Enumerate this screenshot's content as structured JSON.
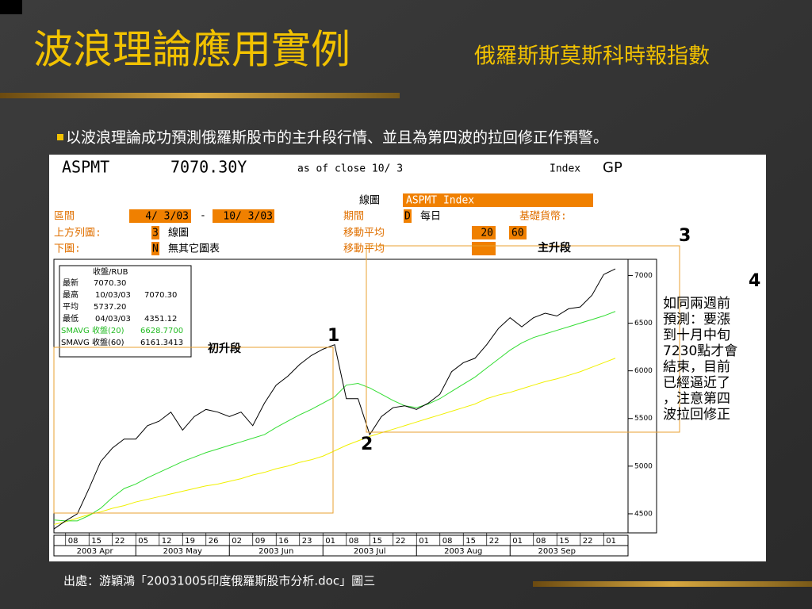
{
  "slide": {
    "title": "波浪理論應用實例",
    "subtitle": "俄羅斯斯莫斯科時報指數",
    "bullet": "以波浪理論成功預測俄羅斯股市的主升段行情、並且為第四波的拉回修正作預警。",
    "source": "出處：游穎鴻「20031005印度俄羅斯股市分析.doc」圖三"
  },
  "header": {
    "ticker": "ASPMT",
    "price": "7070.30Y",
    "asof": "as of close 10/ 3",
    "index": "Index",
    "gp": "GP",
    "chart_lbl": "線圖",
    "security": "ASPMT Index",
    "range_lbl": "區間",
    "from": "4/ 3/03",
    "dash": "-",
    "to": "10/ 3/03",
    "period_lbl": "期間",
    "period_code": "D",
    "period": "每日",
    "currency_lbl": "基礎貨幣:",
    "upper_lbl": "上方列圖:",
    "upper_code": "3",
    "upper": "線圖",
    "ma_lbl1": "移動平均",
    "ma1": "20",
    "ma2": "60",
    "lower_lbl": "下圖:",
    "lower_code": "N",
    "lower": "無其它圖表",
    "ma_lbl2": "移動平均"
  },
  "info": {
    "head": "收盤/RUB",
    "rows": [
      [
        "最新",
        "",
        "7070.30"
      ],
      [
        "最高",
        "10/03/03",
        "7070.30"
      ],
      [
        "平均",
        "",
        "5737.20"
      ],
      [
        "最低",
        "04/03/03",
        "4351.12"
      ]
    ]
  },
  "annotations": {
    "main": "主升段",
    "w1": "1",
    "w2": "2",
    "w3": "3",
    "w4": "4",
    "initial": "初升段",
    "note": [
      "如同兩週前",
      "預測：要漲",
      "到十月中旬",
      "7230點才會",
      "結束，目前",
      "已經逼近了",
      "，注意第四",
      "波拉回修正"
    ]
  },
  "chart_data": {
    "type": "line",
    "categories": [
      null,
      "08",
      null,
      "15",
      null,
      "22",
      null,
      "05",
      null,
      "12",
      null,
      "19",
      null,
      "26",
      null,
      "02",
      null,
      "09",
      null,
      "16",
      null,
      "23",
      null,
      "01",
      null,
      "08",
      null,
      "15",
      null,
      "22",
      null,
      "01",
      null,
      "08",
      null,
      "15",
      null,
      "22",
      null,
      "01",
      null,
      "08",
      null,
      "15",
      null,
      "22",
      null,
      "01",
      null
    ],
    "months": [
      "2003 Apr",
      "2003 May",
      "2003 Jun",
      "2003 Jul",
      "2003 Aug",
      "2003 Sep"
    ],
    "ylim": [
      4300,
      7170
    ],
    "yticks": [
      4500,
      5000,
      5500,
      6000,
      6500,
      7000
    ],
    "series": [
      {
        "name": "收盤/RUB",
        "color": "#000000",
        "values": [
          4341,
          4426,
          4500,
          4765,
          5048,
          5190,
          5284,
          5284,
          5425,
          5472,
          5567,
          5378,
          5520,
          5595,
          5567,
          5520,
          5567,
          5425,
          5661,
          5850,
          5944,
          6066,
          6160,
          6227,
          6274,
          5708,
          5708,
          5331,
          5520,
          5614,
          5633,
          5595,
          5661,
          5755,
          5991,
          6085,
          6132,
          6274,
          6444,
          6557,
          6462,
          6557,
          6604,
          6575,
          6651,
          6670,
          6793,
          7010,
          7070
        ]
      },
      {
        "name": "SMAVG 收盤(20)",
        "last_label": "6628.7700",
        "color": "#33dd33",
        "values": [
          4435,
          4426,
          4426,
          4482,
          4558,
          4671,
          4765,
          4812,
          4878,
          4935,
          4991,
          5048,
          5095,
          5142,
          5180,
          5218,
          5255,
          5293,
          5331,
          5406,
          5472,
          5538,
          5595,
          5661,
          5727,
          5850,
          5868,
          5821,
          5755,
          5689,
          5633,
          5614,
          5652,
          5708,
          5784,
          5859,
          5934,
          6029,
          6123,
          6217,
          6293,
          6349,
          6387,
          6425,
          6462,
          6500,
          6538,
          6576,
          6623
        ]
      },
      {
        "name": "SMAVG 收盤(60)",
        "last_label": "6161.3413",
        "color": "#f0f000",
        "values": [
          4388,
          4416,
          4454,
          4492,
          4520,
          4558,
          4586,
          4624,
          4652,
          4680,
          4709,
          4737,
          4765,
          4793,
          4812,
          4841,
          4869,
          4907,
          4935,
          4973,
          5001,
          5039,
          5067,
          5105,
          5161,
          5218,
          5265,
          5312,
          5350,
          5387,
          5425,
          5463,
          5501,
          5538,
          5576,
          5614,
          5652,
          5708,
          5746,
          5774,
          5812,
          5850,
          5887,
          5916,
          5953,
          5991,
          6038,
          6085,
          6132
        ]
      }
    ]
  }
}
